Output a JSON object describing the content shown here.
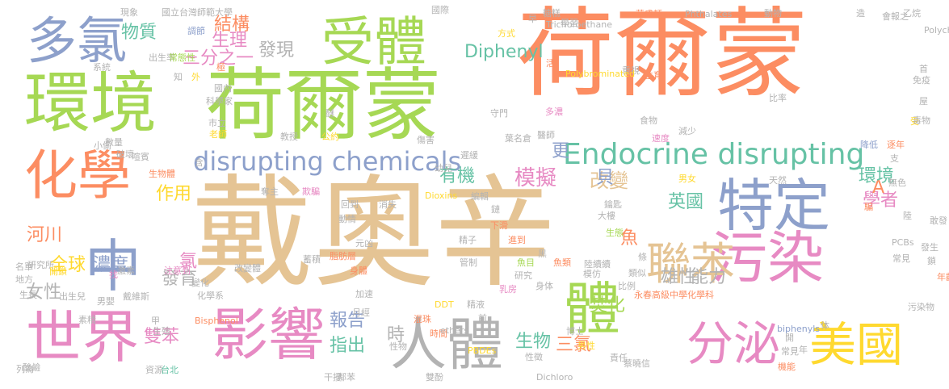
{
  "words": [
    {
      "text": "戴奧辛",
      "color": "#e5c494"
    },
    {
      "text": "荷爾蒙",
      "color": "#fc8d62"
    },
    {
      "text": "荷爾蒙",
      "color": "#a6d854"
    },
    {
      "text": "環境",
      "color": "#a6d854"
    },
    {
      "text": "中",
      "color": "#8da0cb"
    },
    {
      "text": "人體",
      "color": "#b3b3b3"
    },
    {
      "text": "污染",
      "color": "#e78ac3"
    },
    {
      "text": "特定",
      "color": "#8da0cb"
    },
    {
      "text": "影響",
      "color": "#e78ac3"
    },
    {
      "text": "世界",
      "color": "#e78ac3"
    },
    {
      "text": "化學",
      "color": "#fc8d62"
    },
    {
      "text": "受體",
      "color": "#a6d854"
    },
    {
      "text": "多氯",
      "color": "#8da0cb"
    },
    {
      "text": "美國",
      "color": "#ffd92f"
    },
    {
      "text": "分泌",
      "color": "#e78ac3"
    },
    {
      "text": "聯苯",
      "color": "#e5c494"
    },
    {
      "text": "體",
      "color": "#a6d854"
    },
    {
      "text": "Endocrine disrupting",
      "color": "#66c2a5"
    },
    {
      "text": "disrupting chemicals",
      "color": "#8da0cb"
    },
    {
      "text": "Diphenyl",
      "color": "#66c2a5"
    },
    {
      "text": "模擬",
      "color": "#e78ac3"
    },
    {
      "text": "改變",
      "color": "#e5c494"
    },
    {
      "text": "全球",
      "color": "#ffd92f"
    },
    {
      "text": "河川",
      "color": "#fc8d62"
    },
    {
      "text": "濃度",
      "color": "#8da0cb"
    },
    {
      "text": "發育",
      "color": "#b3b3b3"
    },
    {
      "text": "雄性",
      "color": "#b3b3b3"
    },
    {
      "text": "能力",
      "color": "#b3b3b3"
    },
    {
      "text": "學者",
      "color": "#e78ac3"
    },
    {
      "text": "英國",
      "color": "#66c2a5"
    },
    {
      "text": "報告",
      "color": "#8da0cb"
    },
    {
      "text": "指出",
      "color": "#66c2a5"
    },
    {
      "text": "生物",
      "color": "#66c2a5"
    },
    {
      "text": "三氯",
      "color": "#fc8d62"
    },
    {
      "text": "焚化",
      "color": "#a6d854"
    },
    {
      "text": "雙苯",
      "color": "#e78ac3"
    },
    {
      "text": "結構",
      "color": "#fc8d62"
    },
    {
      "text": "發現",
      "color": "#b3b3b3"
    },
    {
      "text": "物質",
      "color": "#66c2a5"
    },
    {
      "text": "生理",
      "color": "#e78ac3"
    },
    {
      "text": "三分之一",
      "color": "#e78ac3"
    },
    {
      "text": "有機",
      "color": "#66c2a5"
    },
    {
      "text": "作用",
      "color": "#ffd92f"
    },
    {
      "text": "女性",
      "color": "#b3b3b3"
    },
    {
      "text": "時",
      "color": "#b3b3b3"
    },
    {
      "text": "更",
      "color": "#8da0cb"
    },
    {
      "text": "貝",
      "color": "#8da0cb"
    },
    {
      "text": "A",
      "color": "#fc8d62"
    },
    {
      "text": "環境",
      "color": "#66c2a5"
    },
    {
      "text": "魚",
      "color": "#fc8d62"
    },
    {
      "text": "氯",
      "color": "#e78ac3"
    },
    {
      "text": "現象",
      "color": "#b3b3b3"
    },
    {
      "text": "國立台灣師範大學",
      "color": "#b3b3b3"
    },
    {
      "text": "調節",
      "color": "#8da0cb"
    },
    {
      "text": "出生率",
      "color": "#b3b3b3"
    },
    {
      "text": "常態性",
      "color": "#a6d854"
    },
    {
      "text": "國內",
      "color": "#b3b3b3"
    },
    {
      "text": "科學家",
      "color": "#b3b3b3"
    },
    {
      "text": "市立",
      "color": "#b3b3b3"
    },
    {
      "text": "老師",
      "color": "#ffd92f"
    },
    {
      "text": "教授",
      "color": "#b3b3b3"
    },
    {
      "text": "公約",
      "color": "#ffd92f"
    },
    {
      "text": "數量",
      "color": "#b3b3b3"
    },
    {
      "text": "喧賓",
      "color": "#b3b3b3"
    },
    {
      "text": "小偷",
      "color": "#b3b3b3"
    },
    {
      "text": "奪主",
      "color": "#b3b3b3"
    },
    {
      "text": "欺騙",
      "color": "#e78ac3"
    },
    {
      "text": "回到",
      "color": "#b3b3b3"
    },
    {
      "text": "消失",
      "color": "#b3b3b3"
    },
    {
      "text": "Dioxins",
      "color": "#ffd92f"
    },
    {
      "text": "動情",
      "color": "#b3b3b3"
    },
    {
      "text": "元凶",
      "color": "#b3b3b3"
    },
    {
      "text": "身體",
      "color": "#fc8d62"
    },
    {
      "text": "加速",
      "color": "#b3b3b3"
    },
    {
      "text": "月經",
      "color": "#b3b3b3"
    },
    {
      "text": "變化",
      "color": "#b3b3b3"
    },
    {
      "text": "化學系",
      "color": "#b3b3b3"
    },
    {
      "text": "戴維斯",
      "color": "#b3b3b3"
    },
    {
      "text": "出生兒",
      "color": "#b3b3b3"
    },
    {
      "text": "男嬰",
      "color": "#b3b3b3"
    },
    {
      "text": "研究所",
      "color": "#b3b3b3"
    },
    {
      "text": "激素",
      "color": "#b3b3b3"
    },
    {
      "text": "注意到",
      "color": "#e78ac3"
    },
    {
      "text": "改變體",
      "color": "#b3b3b3"
    },
    {
      "text": "地方",
      "color": "#b3b3b3"
    },
    {
      "text": "開鎖",
      "color": "#ffd92f"
    },
    {
      "text": "資源",
      "color": "#b3b3b3"
    },
    {
      "text": "台北",
      "color": "#66c2a5"
    },
    {
      "text": "酸鹼",
      "color": "#b3b3b3"
    },
    {
      "text": "性物",
      "color": "#b3b3b3"
    },
    {
      "text": "性徵",
      "color": "#b3b3b3"
    },
    {
      "text": "博士",
      "color": "#b3b3b3"
    },
    {
      "text": "男性",
      "color": "#ffd92f"
    },
    {
      "text": "責任",
      "color": "#b3b3b3"
    },
    {
      "text": "蔡曉信",
      "color": "#b3b3b3"
    },
    {
      "text": "Dichloro",
      "color": "#b3b3b3"
    },
    {
      "text": "常見",
      "color": "#b3b3b3"
    },
    {
      "text": "機能",
      "color": "#fc8d62"
    },
    {
      "text": "時間",
      "color": "#fc8d62"
    },
    {
      "text": "混珠",
      "color": "#fc8d62"
    },
    {
      "text": "DDT",
      "color": "#ffd92f"
    },
    {
      "text": "精液",
      "color": "#b3b3b3"
    },
    {
      "text": "乳房",
      "color": "#e78ac3"
    },
    {
      "text": "身体",
      "color": "#b3b3b3"
    },
    {
      "text": "魚目",
      "color": "#a6d854"
    },
    {
      "text": "魚類",
      "color": "#fc8d62"
    },
    {
      "text": "陸續續",
      "color": "#b3b3b3"
    },
    {
      "text": "永春高級中學化學科",
      "color": "#fc8d62"
    },
    {
      "text": "比例",
      "color": "#b3b3b3"
    },
    {
      "text": "類似",
      "color": "#b3b3b3"
    },
    {
      "text": "生態",
      "color": "#a6d854"
    },
    {
      "text": "進到",
      "color": "#fc8d62"
    },
    {
      "text": "精子",
      "color": "#b3b3b3"
    },
    {
      "text": "編輯",
      "color": "#b3b3b3"
    },
    {
      "text": "鏈",
      "color": "#b3b3b3"
    },
    {
      "text": "下滑",
      "color": "#fc8d62"
    },
    {
      "text": "鑰匙",
      "color": "#b3b3b3"
    },
    {
      "text": "大樓",
      "color": "#b3b3b3"
    },
    {
      "text": "男女",
      "color": "#ffd92f"
    },
    {
      "text": "天然",
      "color": "#b3b3b3"
    },
    {
      "text": "陸",
      "color": "#b3b3b3"
    },
    {
      "text": "敢發",
      "color": "#b3b3b3"
    },
    {
      "text": "發生",
      "color": "#b3b3b3"
    },
    {
      "text": "鎖",
      "color": "#b3b3b3"
    },
    {
      "text": "年齡",
      "color": "#fc8d62"
    },
    {
      "text": "降低",
      "color": "#8da0cb"
    },
    {
      "text": "逐年",
      "color": "#fc8d62"
    },
    {
      "text": "受",
      "color": "#ffd92f"
    },
    {
      "text": "屋",
      "color": "#b3b3b3"
    },
    {
      "text": "比率",
      "color": "#b3b3b3"
    },
    {
      "text": "生育",
      "color": "#fc8d62"
    },
    {
      "text": "食物",
      "color": "#b3b3b3"
    },
    {
      "text": "速度",
      "color": "#e78ac3"
    },
    {
      "text": "減少",
      "color": "#b3b3b3"
    },
    {
      "text": "葉名倉",
      "color": "#b3b3b3"
    },
    {
      "text": "醫師",
      "color": "#b3b3b3"
    },
    {
      "text": "多濃",
      "color": "#e78ac3"
    },
    {
      "text": "守門",
      "color": "#b3b3b3"
    },
    {
      "text": "重視",
      "color": "#b3b3b3"
    },
    {
      "text": "方式",
      "color": "#ffd92f"
    },
    {
      "text": "Trichoroethane",
      "color": "#b3b3b3"
    },
    {
      "text": "糖糕",
      "color": "#b3b3b3"
    },
    {
      "text": "華盛頓",
      "color": "#fc8d62"
    },
    {
      "text": "Phthalates",
      "color": "#b3b3b3"
    },
    {
      "text": "動物",
      "color": "#b3b3b3"
    },
    {
      "text": "造",
      "color": "#b3b3b3"
    },
    {
      "text": "會報之",
      "color": "#b3b3b3"
    },
    {
      "text": "乙烷",
      "color": "#b3b3b3"
    },
    {
      "text": "Polychlorinated",
      "color": "#b3b3b3"
    },
    {
      "text": "Polybrominated",
      "color": "#ffd92f"
    },
    {
      "text": "biphenyls",
      "color": "#8da0cb"
    },
    {
      "text": "ethers",
      "color": "#b3b3b3"
    },
    {
      "text": "PBDEs",
      "color": "#ffd92f"
    },
    {
      "text": "Bisphenol",
      "color": "#fc8d62"
    },
    {
      "text": "生物體",
      "color": "#fc8d62"
    },
    {
      "text": "早",
      "color": "#b3b3b3"
    },
    {
      "text": "國際",
      "color": "#b3b3b3"
    },
    {
      "text": "學習",
      "color": "#b3b3b3"
    },
    {
      "text": "活",
      "color": "#fc8d62"
    },
    {
      "text": "極",
      "color": "#fc8d62"
    },
    {
      "text": "醚",
      "color": "#b3b3b3"
    },
    {
      "text": "傷害",
      "color": "#b3b3b3"
    },
    {
      "text": "蓄積",
      "color": "#b3b3b3"
    },
    {
      "text": "脂肪層",
      "color": "#fc8d62"
    },
    {
      "text": "研究",
      "color": "#b3b3b3"
    },
    {
      "text": "條",
      "color": "#b3b3b3"
    },
    {
      "text": "模仿",
      "color": "#b3b3b3"
    },
    {
      "text": "前",
      "color": "#b3b3b3"
    },
    {
      "text": "年",
      "color": "#b3b3b3"
    },
    {
      "text": "体",
      "color": "#b3b3b3"
    },
    {
      "text": "開",
      "color": "#b3b3b3"
    },
    {
      "text": "黑",
      "color": "#b3b3b3"
    },
    {
      "text": "找",
      "color": "#e78ac3"
    },
    {
      "text": "支",
      "color": "#b3b3b3"
    },
    {
      "text": "騙",
      "color": "#fc8d62"
    },
    {
      "text": "含",
      "color": "#b3b3b3"
    },
    {
      "text": "系統",
      "color": "#b3b3b3"
    },
    {
      "text": "外",
      "color": "#ffd92f"
    },
    {
      "text": "知",
      "color": "#b3b3b3"
    },
    {
      "text": "首",
      "color": "#b3b3b3"
    },
    {
      "text": "免疫",
      "color": "#b3b3b3"
    },
    {
      "text": "毒物",
      "color": "#b3b3b3"
    },
    {
      "text": "幼兒",
      "color": "#b3b3b3"
    },
    {
      "text": "遲緩",
      "color": "#b3b3b3"
    },
    {
      "text": "破壞",
      "color": "#b3b3b3"
    },
    {
      "text": "生長",
      "color": "#b3b3b3"
    },
    {
      "text": "素精",
      "color": "#b3b3b3"
    },
    {
      "text": "名單",
      "color": "#b3b3b3"
    },
    {
      "text": "生殖",
      "color": "#b3b3b3"
    },
    {
      "text": "甲",
      "color": "#b3b3b3"
    },
    {
      "text": "列為",
      "color": "#b3b3b3"
    },
    {
      "text": "干擾",
      "color": "#b3b3b3"
    },
    {
      "text": "鄰苯",
      "color": "#b3b3b3"
    },
    {
      "text": "雙酚",
      "color": "#b3b3b3"
    },
    {
      "text": "管制",
      "color": "#b3b3b3"
    },
    {
      "text": "無色",
      "color": "#b3b3b3"
    },
    {
      "text": "PCBs",
      "color": "#b3b3b3"
    },
    {
      "text": "常見",
      "color": "#b3b3b3"
    },
    {
      "text": "污染物",
      "color": "#b3b3b3"
    }
  ]
}
